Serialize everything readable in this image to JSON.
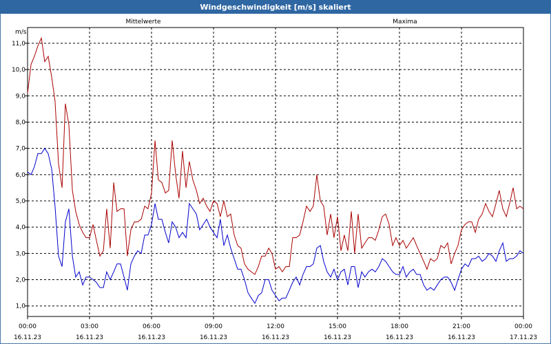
{
  "window": {
    "title": "Windgeschwindigkeit [m/s] skaliert"
  },
  "chart_data": {
    "type": "line",
    "title": "Windgeschwindigkeit [m/s] skaliert",
    "ylabel": "m/s",
    "xlabel": "",
    "ylim": [
      0.6,
      11.6
    ],
    "xlim": [
      0,
      24
    ],
    "grid": true,
    "y_ticks": [
      "1,0",
      "2,0",
      "3,0",
      "4,0",
      "5,0",
      "6,0",
      "7,0",
      "8,0",
      "9,0",
      "10,0",
      "11,0"
    ],
    "x_ticks": [
      {
        "time": "00:00",
        "date": "16.11.23"
      },
      {
        "time": "03:00",
        "date": "16.11.23"
      },
      {
        "time": "06:00",
        "date": "16.11.23"
      },
      {
        "time": "09:00",
        "date": "16.11.23"
      },
      {
        "time": "12:00",
        "date": "16.11.23"
      },
      {
        "time": "15:00",
        "date": "16.11.23"
      },
      {
        "time": "18:00",
        "date": "16.11.23"
      },
      {
        "time": "21:00",
        "date": "16.11.23"
      },
      {
        "time": "00:00",
        "date": "17.11.23"
      }
    ],
    "series": [
      {
        "name": "Mittelwerte",
        "color": "#0000cc",
        "x": [
          0,
          0.17,
          0.33,
          0.5,
          0.67,
          0.83,
          1,
          1.17,
          1.33,
          1.5,
          1.67,
          1.83,
          2,
          2.17,
          2.33,
          2.5,
          2.67,
          2.83,
          3,
          3.17,
          3.33,
          3.5,
          3.67,
          3.83,
          4,
          4.17,
          4.33,
          4.5,
          4.67,
          4.83,
          5,
          5.17,
          5.33,
          5.5,
          5.67,
          5.83,
          6,
          6.17,
          6.33,
          6.5,
          6.67,
          6.83,
          7,
          7.17,
          7.33,
          7.5,
          7.67,
          7.83,
          8,
          8.17,
          8.33,
          8.5,
          8.67,
          8.83,
          9,
          9.17,
          9.33,
          9.5,
          9.67,
          9.83,
          10,
          10.17,
          10.33,
          10.5,
          10.67,
          10.83,
          11,
          11.17,
          11.33,
          11.5,
          11.67,
          11.83,
          12,
          12.17,
          12.33,
          12.5,
          12.67,
          12.83,
          13,
          13.17,
          13.33,
          13.5,
          13.67,
          13.83,
          14,
          14.17,
          14.33,
          14.5,
          14.67,
          14.83,
          15,
          15.17,
          15.33,
          15.5,
          15.67,
          15.83,
          16,
          16.17,
          16.33,
          16.5,
          16.67,
          16.83,
          17,
          17.17,
          17.33,
          17.5,
          17.67,
          17.83,
          18,
          18.17,
          18.33,
          18.5,
          18.67,
          18.83,
          19,
          19.17,
          19.33,
          19.5,
          19.67,
          19.83,
          20,
          20.17,
          20.33,
          20.5,
          20.67,
          20.83,
          21,
          21.17,
          21.33,
          21.5,
          21.67,
          21.83,
          22,
          22.17,
          22.33,
          22.5,
          22.67,
          22.83,
          23,
          23.17,
          23.33,
          23.5,
          23.67,
          23.83,
          24
        ],
        "values": [
          6.1,
          6.0,
          6.3,
          6.8,
          6.8,
          7.0,
          6.8,
          6.2,
          4.8,
          2.9,
          2.5,
          4.2,
          4.7,
          2.9,
          2.1,
          2.3,
          1.8,
          2.1,
          2.1,
          2.0,
          1.9,
          1.7,
          1.7,
          2.3,
          2.0,
          2.3,
          2.6,
          2.6,
          2.1,
          1.6,
          2.6,
          2.9,
          3.1,
          3.0,
          3.7,
          3.7,
          4.1,
          4.9,
          4.3,
          4.3,
          3.8,
          3.4,
          4.2,
          4.0,
          3.6,
          3.8,
          3.6,
          4.9,
          4.7,
          4.5,
          3.9,
          4.1,
          4.3,
          4.0,
          3.8,
          3.6,
          4.3,
          3.3,
          3.7,
          3.2,
          2.8,
          2.4,
          2.4,
          2.0,
          1.5,
          1.3,
          1.1,
          1.4,
          1.5,
          2.0,
          2.0,
          1.6,
          1.4,
          1.2,
          1.3,
          1.3,
          1.6,
          1.9,
          2.1,
          1.8,
          2.2,
          2.5,
          2.5,
          2.6,
          3.2,
          3.3,
          2.7,
          2.3,
          2.1,
          2.4,
          2.0,
          2.3,
          2.4,
          1.8,
          2.5,
          2.5,
          1.7,
          2.3,
          2.1,
          2.3,
          2.4,
          2.3,
          2.5,
          2.8,
          2.7,
          2.5,
          2.3,
          2.2,
          2.2,
          2.5,
          2.1,
          2.3,
          2.4,
          2.2,
          2.2,
          1.8,
          1.6,
          1.7,
          1.6,
          1.8,
          2.0,
          2.1,
          2.1,
          1.9,
          1.6,
          2.0,
          2.4,
          2.6,
          2.5,
          2.8,
          2.8,
          2.9,
          2.7,
          2.8,
          3.0,
          2.9,
          2.7,
          3.1,
          3.4,
          2.7,
          2.8,
          2.8,
          2.9,
          3.1,
          3.0
        ]
      },
      {
        "name": "Maxima",
        "color": "#aa0000",
        "x": [
          0,
          0.17,
          0.33,
          0.5,
          0.67,
          0.83,
          1,
          1.17,
          1.33,
          1.5,
          1.67,
          1.83,
          2,
          2.17,
          2.33,
          2.5,
          2.67,
          2.83,
          3,
          3.17,
          3.33,
          3.5,
          3.67,
          3.83,
          4,
          4.17,
          4.33,
          4.5,
          4.67,
          4.83,
          5,
          5.17,
          5.33,
          5.5,
          5.67,
          5.83,
          6,
          6.17,
          6.33,
          6.5,
          6.67,
          6.83,
          7,
          7.17,
          7.33,
          7.5,
          7.67,
          7.83,
          8,
          8.17,
          8.33,
          8.5,
          8.67,
          8.83,
          9,
          9.17,
          9.33,
          9.5,
          9.67,
          9.83,
          10,
          10.17,
          10.33,
          10.5,
          10.67,
          10.83,
          11,
          11.17,
          11.33,
          11.5,
          11.67,
          11.83,
          12,
          12.17,
          12.33,
          12.5,
          12.67,
          12.83,
          13,
          13.17,
          13.33,
          13.5,
          13.67,
          13.83,
          14,
          14.17,
          14.33,
          14.5,
          14.67,
          14.83,
          15,
          15.17,
          15.33,
          15.5,
          15.67,
          15.83,
          16,
          16.17,
          16.33,
          16.5,
          16.67,
          16.83,
          17,
          17.17,
          17.33,
          17.5,
          17.67,
          17.83,
          18,
          18.17,
          18.33,
          18.5,
          18.67,
          18.83,
          19,
          19.17,
          19.33,
          19.5,
          19.67,
          19.83,
          20,
          20.17,
          20.33,
          20.5,
          20.67,
          20.83,
          21,
          21.17,
          21.33,
          21.5,
          21.67,
          21.83,
          22,
          22.17,
          22.33,
          22.5,
          22.67,
          22.83,
          23,
          23.17,
          23.33,
          23.5,
          23.67,
          23.83,
          24
        ],
        "values": [
          9.1,
          10.2,
          10.5,
          10.9,
          11.2,
          10.3,
          10.5,
          9.7,
          8.8,
          6.4,
          5.5,
          8.7,
          7.9,
          5.4,
          4.6,
          4.1,
          3.8,
          3.6,
          3.6,
          4.1,
          3.5,
          2.9,
          3.1,
          4.7,
          3.2,
          5.7,
          4.6,
          4.7,
          4.7,
          2.9,
          3.9,
          4.2,
          4.2,
          4.3,
          4.8,
          4.7,
          5.3,
          7.3,
          5.8,
          5.7,
          5.3,
          5.4,
          7.3,
          6.0,
          5.1,
          6.9,
          5.5,
          6.5,
          5.8,
          5.4,
          4.9,
          5.1,
          4.8,
          4.6,
          5.0,
          4.9,
          4.4,
          5.0,
          4.4,
          4.5,
          3.7,
          3.3,
          3.2,
          2.6,
          2.4,
          2.3,
          2.2,
          2.5,
          2.9,
          2.9,
          3.2,
          3.0,
          2.4,
          2.5,
          2.3,
          2.5,
          2.5,
          3.6,
          3.6,
          3.7,
          4.2,
          4.8,
          4.6,
          4.8,
          6.0,
          5.0,
          4.8,
          3.7,
          4.5,
          3.6,
          4.4,
          3.1,
          3.7,
          3.1,
          4.6,
          3.0,
          4.5,
          3.2,
          3.4,
          3.6,
          3.6,
          3.5,
          3.9,
          4.4,
          4.5,
          4.1,
          3.3,
          3.6,
          3.3,
          3.5,
          3.2,
          3.4,
          3.6,
          3.3,
          3.0,
          2.7,
          2.4,
          2.8,
          2.7,
          2.8,
          3.3,
          3.2,
          3.4,
          2.6,
          3.0,
          3.3,
          3.9,
          4.1,
          4.2,
          4.2,
          3.8,
          4.3,
          4.5,
          4.9,
          4.6,
          4.4,
          4.9,
          5.4,
          4.7,
          4.4,
          4.9,
          5.5,
          4.7,
          4.8,
          4.7
        ]
      }
    ]
  }
}
